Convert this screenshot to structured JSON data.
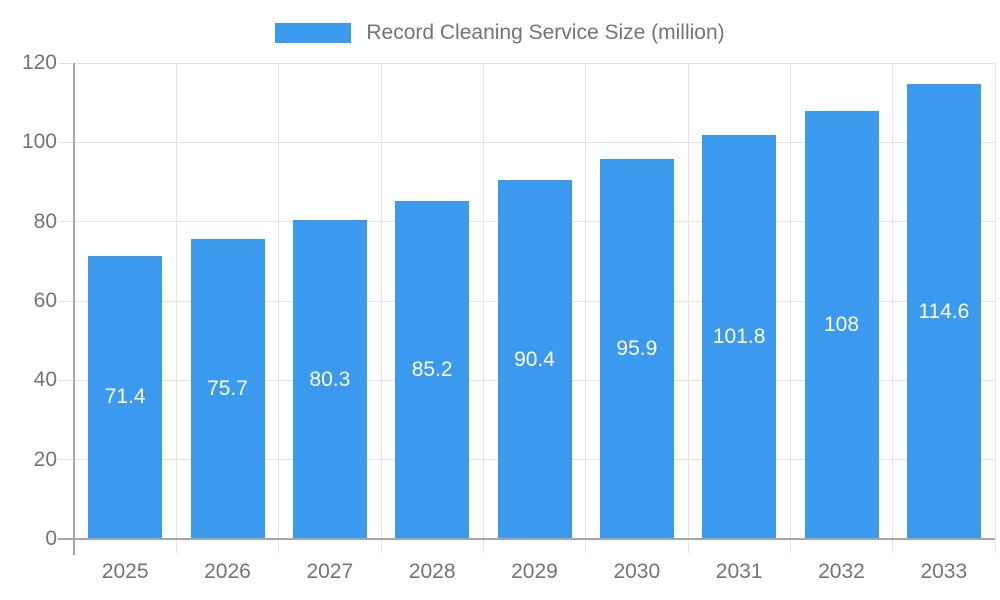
{
  "chart_data": {
    "type": "bar",
    "title": "Record Cleaning Service Size (million)",
    "series_name": "Record Cleaning Service Size (million)",
    "categories": [
      "2025",
      "2026",
      "2027",
      "2028",
      "2029",
      "2030",
      "2031",
      "2032",
      "2033"
    ],
    "values": [
      71.4,
      75.7,
      80.3,
      85.2,
      90.4,
      95.9,
      101.8,
      108,
      114.6
    ],
    "value_labels": [
      "71.4",
      "75.7",
      "80.3",
      "85.2",
      "90.4",
      "95.9",
      "101.8",
      "108",
      "114.6"
    ],
    "xlabel": "",
    "ylabel": "",
    "ylim": [
      0,
      120
    ],
    "yticks": [
      0,
      20,
      40,
      60,
      80,
      100,
      120
    ],
    "grid": true,
    "legend_position": "top-center",
    "value_label_position": "inside-center",
    "colors": {
      "bar": "#3b99ee",
      "value_label": "#ffffff",
      "axis_line": "#a6a6a6",
      "gridline": "#e4e4e4",
      "tick_text": "#747474",
      "background": "#ffffff"
    }
  }
}
